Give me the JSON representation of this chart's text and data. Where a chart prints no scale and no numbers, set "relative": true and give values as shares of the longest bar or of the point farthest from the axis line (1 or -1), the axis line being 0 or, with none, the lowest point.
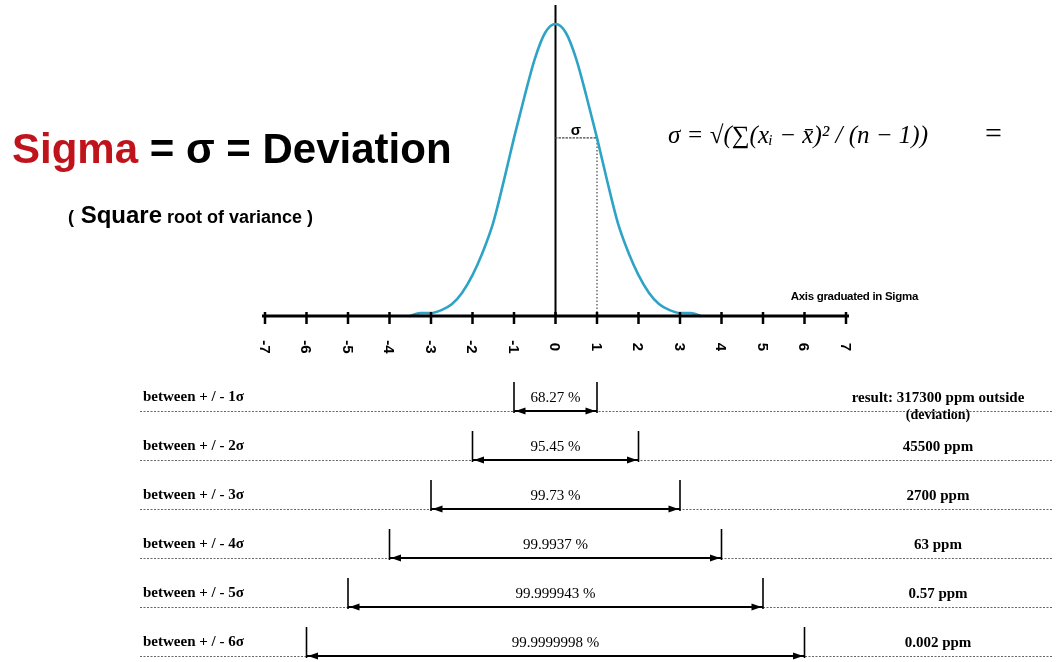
{
  "chart_data": [
    {
      "type": "line",
      "title": "Sigma = σ = Deviation",
      "subtitle": "( Square root of variance )",
      "xlabel": "Axis graduated in Sigma",
      "series": [
        {
          "color": "#2ea3c6",
          "x": [
            -3.5,
            -3.25,
            -3,
            -2.75,
            -2.5,
            -2.25,
            -2,
            -1.75,
            -1.5,
            -1.25,
            -1,
            -0.75,
            -0.5,
            -0.25,
            0,
            0.25,
            0.5,
            0.75,
            1,
            1.25,
            1.5,
            1.75,
            2,
            2.25,
            2.5,
            2.75,
            3,
            3.25,
            3.5
          ],
          "values": [
            0,
            0.01,
            0.01,
            0.02,
            0.04,
            0.08,
            0.14,
            0.22,
            0.32,
            0.46,
            0.61,
            0.75,
            0.88,
            0.97,
            1,
            0.97,
            0.88,
            0.75,
            0.61,
            0.46,
            0.32,
            0.22,
            0.14,
            0.08,
            0.04,
            0.02,
            0.01,
            0.01,
            0
          ]
        },
        {
          "type": "line",
          "color": "#444444",
          "line_style": "dotted",
          "x": [
            0,
            1
          ],
          "values": [
            0.61,
            0.61
          ]
        }
      ],
      "relative": true,
      "xlim": [
        -7,
        7
      ],
      "xticks": [
        -7,
        -6,
        -5,
        -4,
        -3,
        -2,
        -1,
        0,
        1,
        2,
        3,
        4,
        5,
        6,
        7
      ],
      "ref_lines": [
        {
          "axis": "x",
          "value": 1,
          "line_style": "dotted",
          "color": "#444444"
        }
      ],
      "annotations": [
        "σ",
        "σ = √(∑(xᵢ − x̄)² / (n − 1))",
        "="
      ]
    },
    {
      "type": "bar",
      "orientation": "horizontal",
      "categories": [
        "between + / - 1σ",
        "between + / - 2σ",
        "between + / - 3σ",
        "between + / - 4σ",
        "between + / - 5σ",
        "between + / - 6σ"
      ],
      "base": [
        -1,
        -2,
        -3,
        -4,
        -5,
        -6
      ],
      "values": [
        2,
        4,
        6,
        8,
        10,
        12
      ],
      "color": "#000000",
      "xlim": [
        -7,
        7
      ],
      "tick_labels": "y",
      "grid": "y",
      "annotations": [
        "68.27 %",
        "95.45 %",
        "99.73 %",
        "99.9937 %",
        "99.999943 %",
        "99.9999998 %",
        "result: 317300 ppm outside\n(deviation)",
        "45500 ppm",
        "2700 ppm",
        "63 ppm",
        "0.57 ppm",
        "0.002 ppm"
      ]
    }
  ]
}
